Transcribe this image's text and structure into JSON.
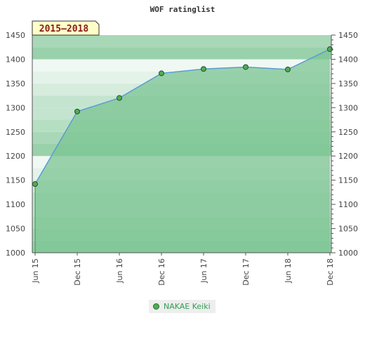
{
  "chart_data": {
    "type": "area",
    "title": "WOF ratinglist",
    "period_label": "2015–2018",
    "x": [
      "Jun 15",
      "Dec 15",
      "Jun 16",
      "Dec 16",
      "Jun 17",
      "Dec 17",
      "Jun 18",
      "Dec 18"
    ],
    "series": [
      {
        "name": "NAKAE Keiki",
        "values": [
          1142,
          1292,
          1320,
          1371,
          1380,
          1384,
          1379,
          1421
        ]
      }
    ],
    "ylim": [
      1000,
      1450
    ],
    "yticks": [
      1000,
      1050,
      1100,
      1150,
      1200,
      1250,
      1300,
      1350,
      1400,
      1450
    ],
    "grid": true,
    "legend_position": "bottom",
    "colors": {
      "line": "#5b9bd5",
      "area": "#7bc492",
      "marker": "#4caf50",
      "period_box_bg": "#ffffc8",
      "period_box_text": "#8b1a1a"
    }
  }
}
